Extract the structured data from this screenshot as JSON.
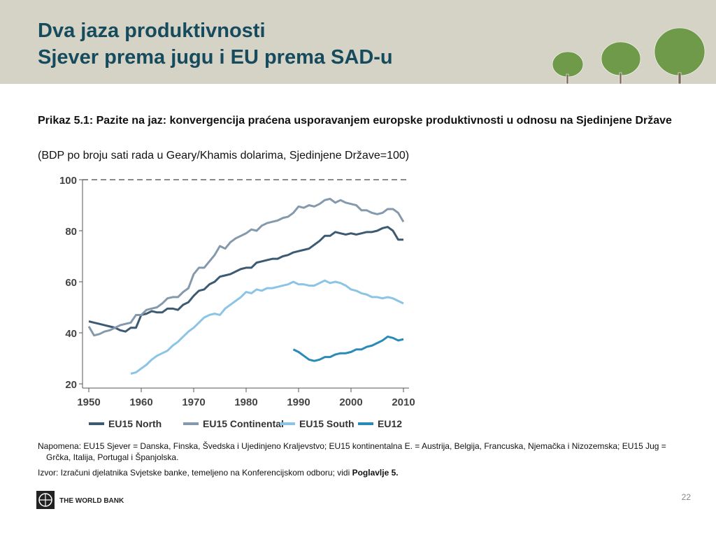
{
  "header": {
    "title_line1": "Dva jaza produktivnosti",
    "title_line2": "Sjever prema jugu i EU prema SAD-u"
  },
  "caption": {
    "title": "Prikaz 5.1: Pazite na jaz: konvergencija praćena usporavanjem europske produktivnosti u odnosu na Sjedinjene Države",
    "subtitle": "(BDP po broju sati rada u Geary/Khamis dolarima, Sjedinjene Države=100)"
  },
  "chart_data": {
    "type": "line",
    "x": [
      1950,
      1951,
      1952,
      1953,
      1954,
      1955,
      1956,
      1957,
      1958,
      1959,
      1960,
      1961,
      1962,
      1963,
      1964,
      1965,
      1966,
      1967,
      1968,
      1969,
      1970,
      1971,
      1972,
      1973,
      1974,
      1975,
      1976,
      1977,
      1978,
      1979,
      1980,
      1981,
      1982,
      1983,
      1984,
      1985,
      1986,
      1987,
      1988,
      1989,
      1990,
      1991,
      1992,
      1993,
      1994,
      1995,
      1996,
      1997,
      1998,
      1999,
      2000,
      2001,
      2002,
      2003,
      2004,
      2005,
      2006,
      2007,
      2008,
      2009,
      2010
    ],
    "series": [
      {
        "name": "EU15 North",
        "color": "#3d5a73",
        "values": [
          44.5,
          44,
          43.5,
          43,
          42.5,
          42,
          41,
          40.5,
          42,
          42,
          47,
          47.5,
          48.5,
          48,
          48,
          49.5,
          49.5,
          49,
          51,
          52,
          54.5,
          56.5,
          57,
          59,
          60,
          62,
          62.5,
          63,
          64,
          65,
          65.5,
          65.5,
          67.5,
          68,
          68.5,
          69,
          69,
          70,
          70.5,
          71.5,
          72,
          72.5,
          73,
          74.5,
          76,
          78,
          78,
          79.5,
          79,
          78.5,
          79,
          78.5,
          79,
          79.5,
          79.5,
          80,
          81,
          81.5,
          80,
          76.5,
          76.5
        ]
      },
      {
        "name": "EU15 Continental",
        "color": "#8499ab",
        "values": [
          42.5,
          39,
          39.5,
          40.5,
          41,
          42,
          43,
          43.5,
          44,
          47,
          47,
          49,
          49.5,
          50,
          51.5,
          53.5,
          54,
          54,
          56,
          57.5,
          63,
          65.5,
          65.5,
          68,
          70.5,
          74,
          73,
          75.5,
          77,
          78,
          79,
          80.5,
          80,
          82,
          83,
          83.5,
          84,
          85,
          85.5,
          87,
          89.5,
          89,
          90,
          89.5,
          90.5,
          92,
          92.5,
          91,
          92,
          91,
          90.5,
          90,
          88,
          88,
          87,
          86.5,
          87,
          88.5,
          88.5,
          87,
          83.5
        ]
      },
      {
        "name": "EU15 South",
        "color": "#8cc4e6",
        "values": [
          null,
          null,
          null,
          null,
          null,
          null,
          null,
          null,
          24,
          24.5,
          26,
          27.5,
          29.5,
          31,
          32,
          33,
          35,
          36.5,
          38.5,
          40.5,
          42,
          44,
          46,
          47,
          47.5,
          47,
          49.5,
          51,
          52.5,
          54,
          56,
          55.5,
          57,
          56.5,
          57.5,
          57.5,
          58,
          58.5,
          59,
          60,
          59,
          59,
          58.5,
          58.5,
          59.5,
          60.5,
          59.5,
          60,
          59.5,
          58.5,
          57,
          56.5,
          55.5,
          55,
          54,
          54,
          53.5,
          54,
          53.5,
          52.5,
          51.5
        ]
      },
      {
        "name": "EU12",
        "color": "#2a8ab8",
        "values": [
          null,
          null,
          null,
          null,
          null,
          null,
          null,
          null,
          null,
          null,
          null,
          null,
          null,
          null,
          null,
          null,
          null,
          null,
          null,
          null,
          null,
          null,
          null,
          null,
          null,
          null,
          null,
          null,
          null,
          null,
          null,
          null,
          null,
          null,
          null,
          null,
          null,
          null,
          null,
          33.5,
          32.5,
          31,
          29.5,
          29,
          29.5,
          30.5,
          30.5,
          31.5,
          32,
          32,
          32.5,
          33.5,
          33.5,
          34.5,
          35,
          36,
          37,
          38.5,
          38,
          37,
          37.5
        ]
      }
    ],
    "reference_line": 100,
    "xlim": [
      1950,
      2010
    ],
    "xticks": [
      1950,
      1960,
      1970,
      1980,
      1990,
      2000,
      2010
    ],
    "ylim": [
      20,
      100
    ],
    "yticks": [
      20,
      40,
      60,
      80,
      100
    ]
  },
  "notes": {
    "note": "Napomena: EU15 Sjever = Danska, Finska, Švedska i Ujedinjeno Kraljevstvo; EU15 kontinentalna E. = Austrija, Belgija, Francuska, Njemačka i Nizozemska; EU15 Jug = Grčka, Italija, Portugal i Španjolska.",
    "source": "Izvor: Izračuni djelatnika Svjetske banke, temeljeno na Konferencijskom odboru; vidi ",
    "source_link": "Poglavlje 5."
  },
  "footer": {
    "logo_text": "THE WORLD BANK",
    "page": "22"
  }
}
